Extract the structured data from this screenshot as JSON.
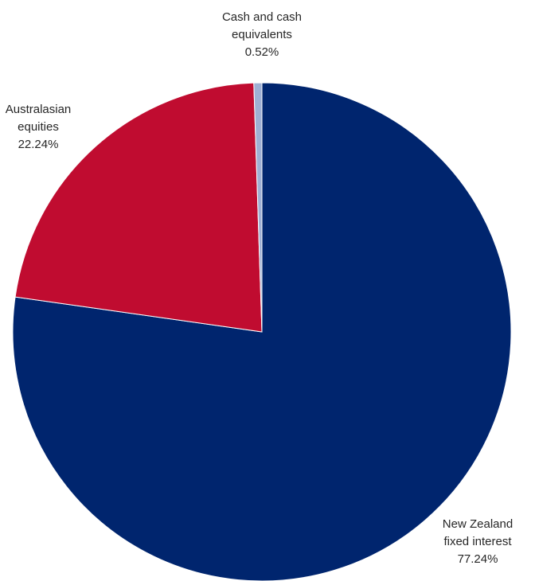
{
  "chart_data": {
    "type": "pie",
    "title": "",
    "start_angle_deg": 0,
    "direction": "clockwise",
    "slices": [
      {
        "name": "New Zealand fixed interest",
        "label_lines": [
          "New Zealand",
          "fixed interest",
          "77.24%"
        ],
        "value": 77.24,
        "color": "#00256e"
      },
      {
        "name": "Australasian equities",
        "label_lines": [
          "Australasian",
          "equities",
          "22.24%"
        ],
        "value": 22.24,
        "color": "#c00c30"
      },
      {
        "name": "Cash and cash equivalents",
        "label_lines": [
          "Cash and cash",
          "equivalents",
          "0.52%"
        ],
        "value": 0.52,
        "color": "#9fb0d4"
      }
    ]
  }
}
